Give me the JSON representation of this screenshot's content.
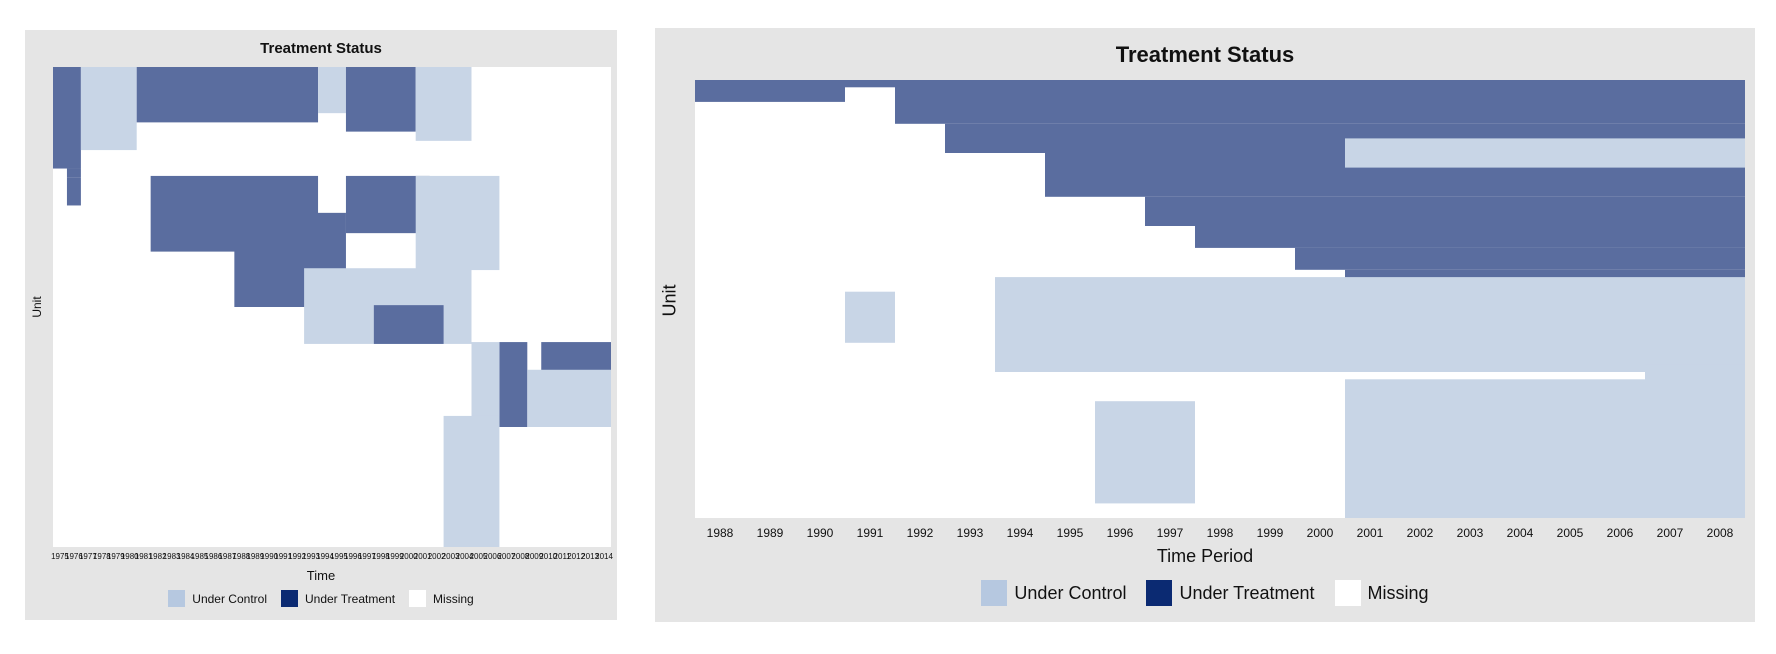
{
  "chart_data": [
    {
      "type": "heatmap",
      "title": "Treatment Status",
      "xlabel": "Time",
      "ylabel": "Unit",
      "x_start": 1975,
      "x_end": 2014,
      "n_units": 260,
      "categories": [
        "Under Control",
        "Under Treatment",
        "Missing"
      ],
      "legend": [
        {
          "label": "Under Control",
          "color": "#b6c8e0"
        },
        {
          "label": "Under Treatment",
          "color": "#0b2a72"
        },
        {
          "label": "Missing",
          "color": "#ffffff"
        }
      ],
      "legend_placement": "bottom",
      "grid": false,
      "status_blocks": [
        {
          "status": "Under Treatment",
          "units": [
            1,
            55
          ],
          "years": [
            1975,
            1976
          ]
        },
        {
          "status": "Under Treatment",
          "units": [
            56,
            60
          ],
          "years": [
            1976,
            1976
          ]
        },
        {
          "status": "Under Treatment",
          "units": [
            61,
            75
          ],
          "years": [
            1976,
            1976
          ]
        },
        {
          "status": "Under Control",
          "units": [
            1,
            45
          ],
          "years": [
            1977,
            1980
          ]
        },
        {
          "status": "Under Treatment",
          "units": [
            1,
            30
          ],
          "years": [
            1981,
            1993
          ]
        },
        {
          "status": "Under Control",
          "units": [
            1,
            25
          ],
          "years": [
            1994,
            1995
          ]
        },
        {
          "status": "Under Treatment",
          "units": [
            1,
            35
          ],
          "years": [
            1996,
            2000
          ]
        },
        {
          "status": "Under Control",
          "units": [
            1,
            40
          ],
          "years": [
            2001,
            2004
          ]
        },
        {
          "status": "Under Treatment",
          "units": [
            60,
            100
          ],
          "years": [
            1982,
            1993
          ]
        },
        {
          "status": "Under Treatment",
          "units": [
            60,
            90
          ],
          "years": [
            1996,
            2001
          ]
        },
        {
          "status": "Under Control",
          "units": [
            60,
            110
          ],
          "years": [
            2001,
            2006
          ]
        },
        {
          "status": "Under Treatment",
          "units": [
            80,
            130
          ],
          "years": [
            1988,
            1995
          ]
        },
        {
          "status": "Under Control",
          "units": [
            110,
            150
          ],
          "years": [
            1993,
            2004
          ]
        },
        {
          "status": "Under Treatment",
          "units": [
            130,
            150
          ],
          "years": [
            1998,
            2002
          ]
        },
        {
          "status": "Under Treatment",
          "units": [
            150,
            195
          ],
          "years": [
            2007,
            2008
          ]
        },
        {
          "status": "Under Control",
          "units": [
            150,
            195
          ],
          "years": [
            2005,
            2006
          ]
        },
        {
          "status": "Under Treatment",
          "units": [
            150,
            165
          ],
          "years": [
            2010,
            2014
          ]
        },
        {
          "status": "Under Control",
          "units": [
            165,
            195
          ],
          "years": [
            2009,
            2014
          ]
        },
        {
          "status": "Under Control",
          "units": [
            190,
            260
          ],
          "years": [
            2003,
            2006
          ]
        }
      ]
    },
    {
      "type": "heatmap",
      "title": "Treatment Status",
      "xlabel": "Time Period",
      "ylabel": "Unit",
      "x": [
        1988,
        1989,
        1990,
        1991,
        1992,
        1993,
        1994,
        1995,
        1996,
        1997,
        1998,
        1999,
        2000,
        2001,
        2002,
        2003,
        2004,
        2005,
        2006,
        2007,
        2008
      ],
      "n_units": 60,
      "categories": [
        "Under Control",
        "Under Treatment",
        "Missing"
      ],
      "legend": [
        {
          "label": "Under Control",
          "color": "#b6c8e0"
        },
        {
          "label": "Under Treatment",
          "color": "#0b2a72"
        },
        {
          "label": "Missing",
          "color": "#ffffff"
        }
      ],
      "legend_placement": "bottom",
      "grid": false,
      "status_blocks": [
        {
          "status": "Under Treatment",
          "units": [
            1,
            3
          ],
          "years": [
            1988,
            1990
          ]
        },
        {
          "status": "Under Treatment",
          "units": [
            1,
            1
          ],
          "years": [
            1991,
            1991
          ]
        },
        {
          "status": "Under Treatment",
          "units": [
            1,
            6
          ],
          "years": [
            1992,
            2008
          ]
        },
        {
          "status": "Under Treatment",
          "units": [
            7,
            10
          ],
          "years": [
            1993,
            2008
          ]
        },
        {
          "status": "Under Treatment",
          "units": [
            11,
            16
          ],
          "years": [
            1995,
            2008
          ]
        },
        {
          "status": "Under Treatment",
          "units": [
            17,
            20
          ],
          "years": [
            1997,
            2008
          ]
        },
        {
          "status": "Under Treatment",
          "units": [
            21,
            23
          ],
          "years": [
            1998,
            2008
          ]
        },
        {
          "status": "Under Treatment",
          "units": [
            24,
            26
          ],
          "years": [
            2000,
            2008
          ]
        },
        {
          "status": "Under Treatment",
          "units": [
            27,
            30
          ],
          "years": [
            2001,
            2008
          ]
        },
        {
          "status": "Under Control",
          "units": [
            9,
            12
          ],
          "years": [
            2001,
            2008
          ]
        },
        {
          "status": "Under Control",
          "units": [
            28,
            40
          ],
          "years": [
            1994,
            2008
          ]
        },
        {
          "status": "Under Control",
          "units": [
            32,
            40
          ],
          "years": [
            1996,
            2008
          ]
        },
        {
          "status": "Under Control",
          "units": [
            42,
            60
          ],
          "years": [
            2001,
            2008
          ]
        },
        {
          "status": "Under Control",
          "units": [
            40,
            60
          ],
          "years": [
            2007,
            2008
          ]
        },
        {
          "status": "Under Control",
          "units": [
            30,
            36
          ],
          "years": [
            1991,
            1991
          ]
        },
        {
          "status": "Under Control",
          "units": [
            45,
            58
          ],
          "years": [
            1996,
            1997
          ]
        }
      ]
    }
  ]
}
